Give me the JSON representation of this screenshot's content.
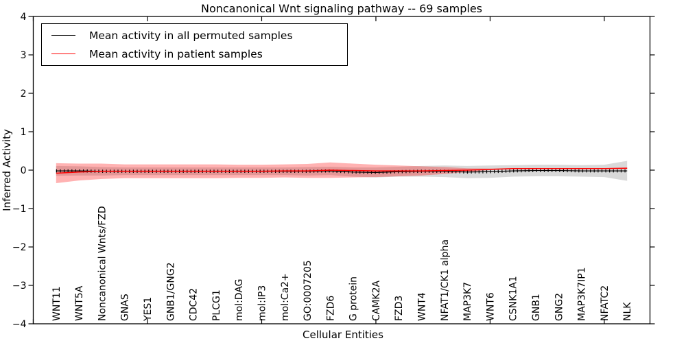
{
  "figure": {
    "title": "Noncanonical Wnt signaling pathway -- 69 samples"
  },
  "chart_data": {
    "type": "line",
    "title": "Noncanonical Wnt signaling pathway -- 69 samples",
    "xlabel": "Cellular Entities",
    "ylabel": "Inferred Activity",
    "ylim": [
      -4,
      4
    ],
    "yticks": [
      4,
      3,
      2,
      1,
      0,
      -1,
      -2,
      -3,
      -4
    ],
    "xtick_units": [
      0,
      5,
      10,
      15,
      20,
      25
    ],
    "grid": false,
    "legend_position": "upper left",
    "categories": [
      "WNT11",
      "WNT5A",
      "Noncanonical Wnts/FZD",
      "GNAS",
      "YES1",
      "GNB1/GNG2",
      "CDC42",
      "PLCG1",
      "mol:DAG",
      "mol:IP3",
      "mol:Ca2+",
      "GO:0007205",
      "FZD6",
      "G protein",
      "CAMK2A",
      "FZD3",
      "WNT4",
      "NFAT1/CK1 alpha",
      "MAP3K7",
      "WNT6",
      "CSNK1A1",
      "GNB1",
      "GNG2",
      "MAP3K7IP1",
      "NFATC2",
      "NLK"
    ],
    "series": [
      {
        "name": "Mean activity in all permuted samples",
        "color": "#000000",
        "band_color": "rgba(0,0,0,0.15)",
        "values": [
          -0.02,
          -0.02,
          -0.03,
          -0.03,
          -0.03,
          -0.03,
          -0.03,
          -0.03,
          -0.03,
          -0.03,
          -0.03,
          -0.03,
          -0.02,
          -0.05,
          -0.06,
          -0.04,
          -0.03,
          -0.03,
          -0.05,
          -0.04,
          -0.02,
          -0.01,
          -0.01,
          -0.02,
          -0.02,
          -0.02
        ],
        "std": [
          0.13,
          0.12,
          0.11,
          0.1,
          0.1,
          0.1,
          0.1,
          0.1,
          0.1,
          0.1,
          0.1,
          0.11,
          0.11,
          0.12,
          0.13,
          0.13,
          0.14,
          0.15,
          0.16,
          0.16,
          0.15,
          0.15,
          0.15,
          0.15,
          0.16,
          0.26
        ]
      },
      {
        "name": "Mean activity in patient samples",
        "color": "#ff0000",
        "band_color": "rgba(255,0,0,0.30)",
        "values": [
          -0.08,
          -0.05,
          -0.03,
          -0.03,
          -0.03,
          -0.03,
          -0.03,
          -0.03,
          -0.03,
          -0.03,
          -0.02,
          -0.02,
          0.0,
          -0.01,
          -0.02,
          -0.02,
          -0.02,
          -0.01,
          0.0,
          0.02,
          0.04,
          0.04,
          0.04,
          0.04,
          0.04,
          0.05
        ],
        "std": [
          0.26,
          0.22,
          0.2,
          0.18,
          0.18,
          0.18,
          0.18,
          0.18,
          0.17,
          0.17,
          0.17,
          0.18,
          0.2,
          0.18,
          0.16,
          0.14,
          0.12,
          0.09,
          0.05,
          0.02,
          0.01,
          0.01,
          0.01,
          0.01,
          0.01,
          0.02
        ]
      }
    ]
  }
}
